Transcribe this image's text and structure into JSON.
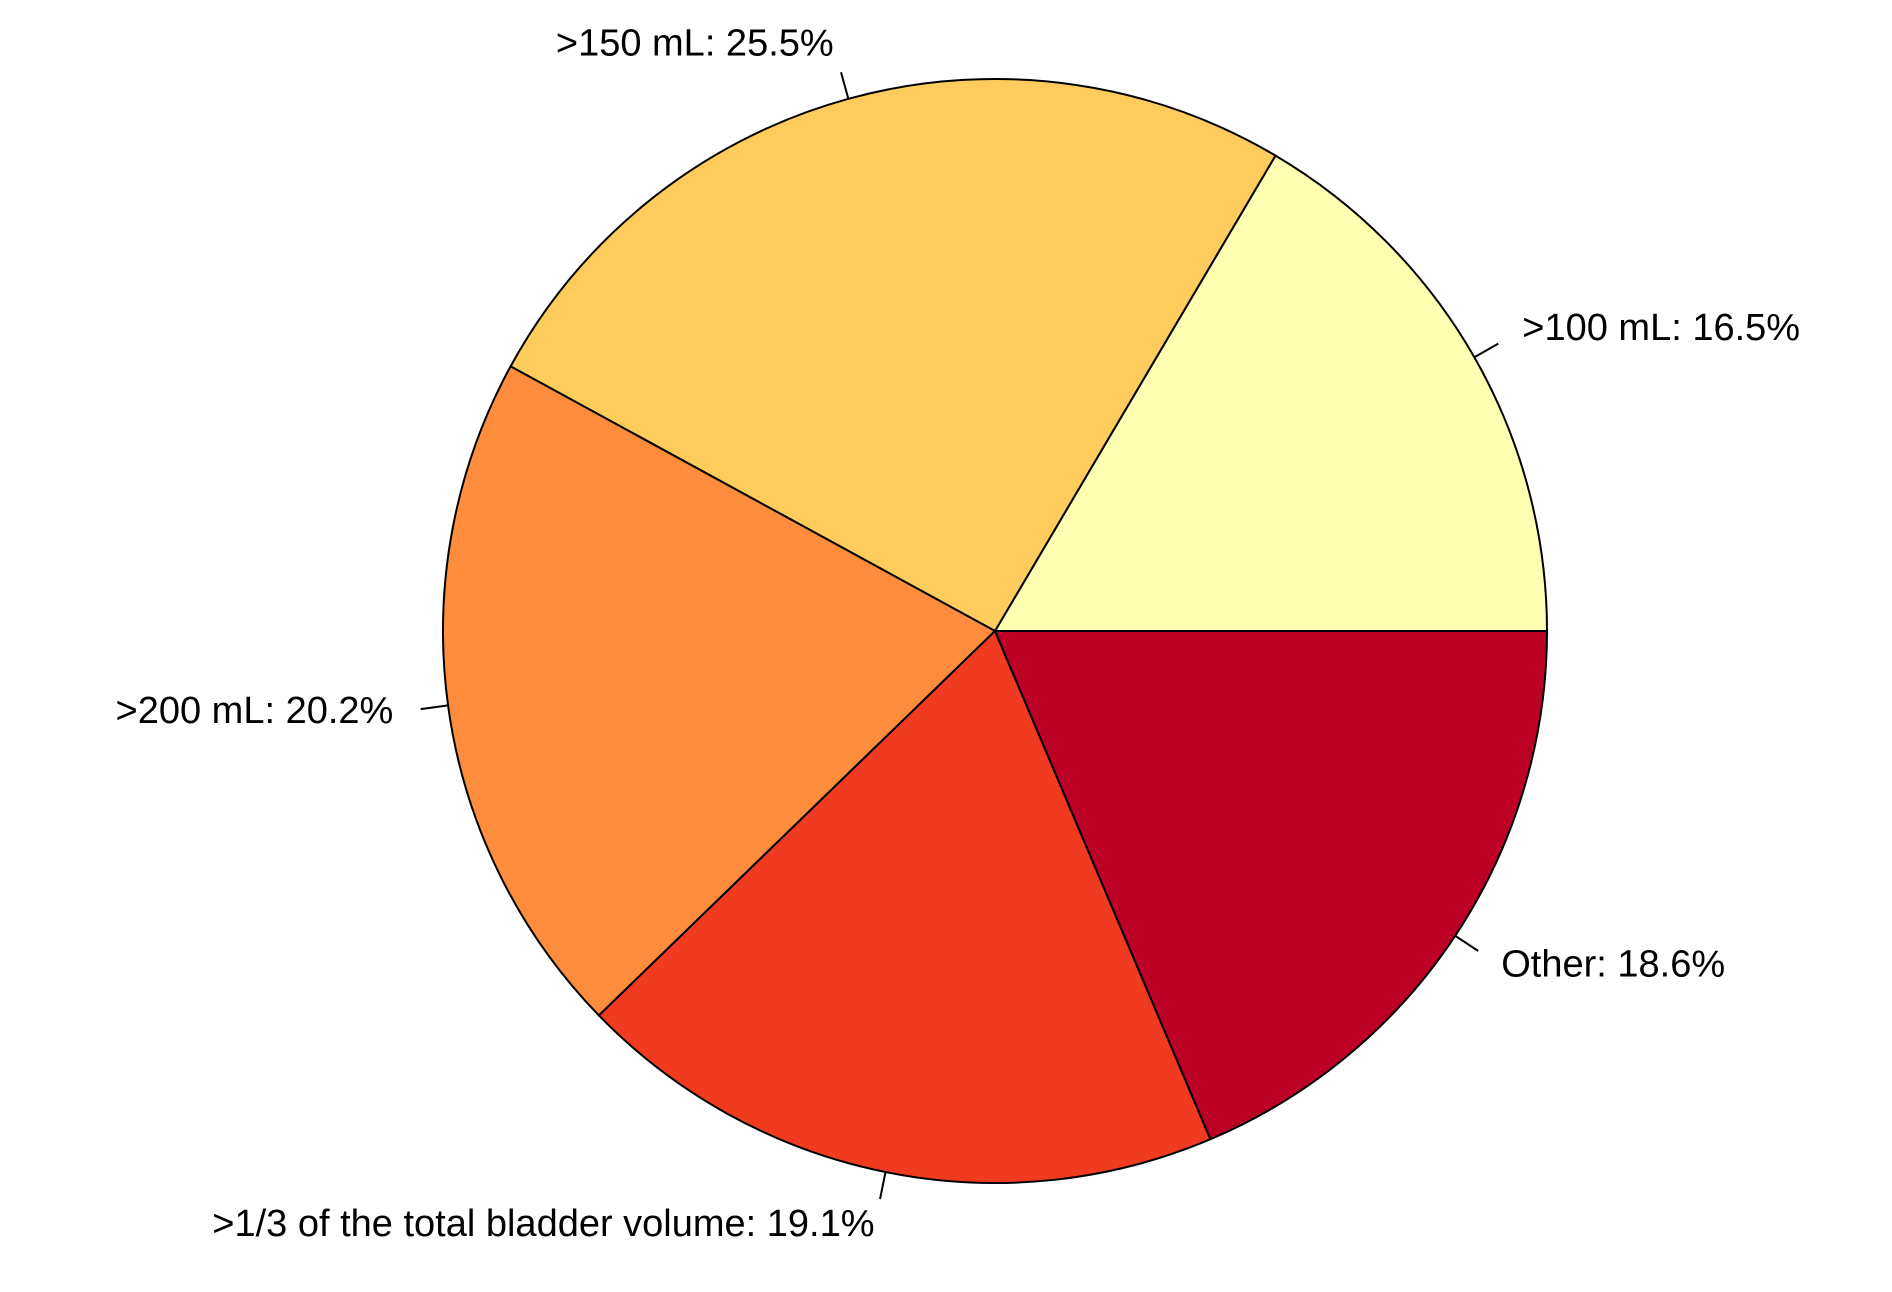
{
  "chart_data": {
    "type": "pie",
    "categories": [
      ">100 mL: 16.5%",
      ">150 mL: 25.5%",
      ">200 mL: 20.2%",
      ">1/3 of the total bladder volume: 19.1%",
      "Other: 18.6%"
    ],
    "values": [
      16.5,
      25.5,
      20.2,
      19.1,
      18.6
    ],
    "colors": [
      "#FFFFB2",
      "#FECC5C",
      "#FD8D3C",
      "#F03B20",
      "#BD0026"
    ]
  }
}
